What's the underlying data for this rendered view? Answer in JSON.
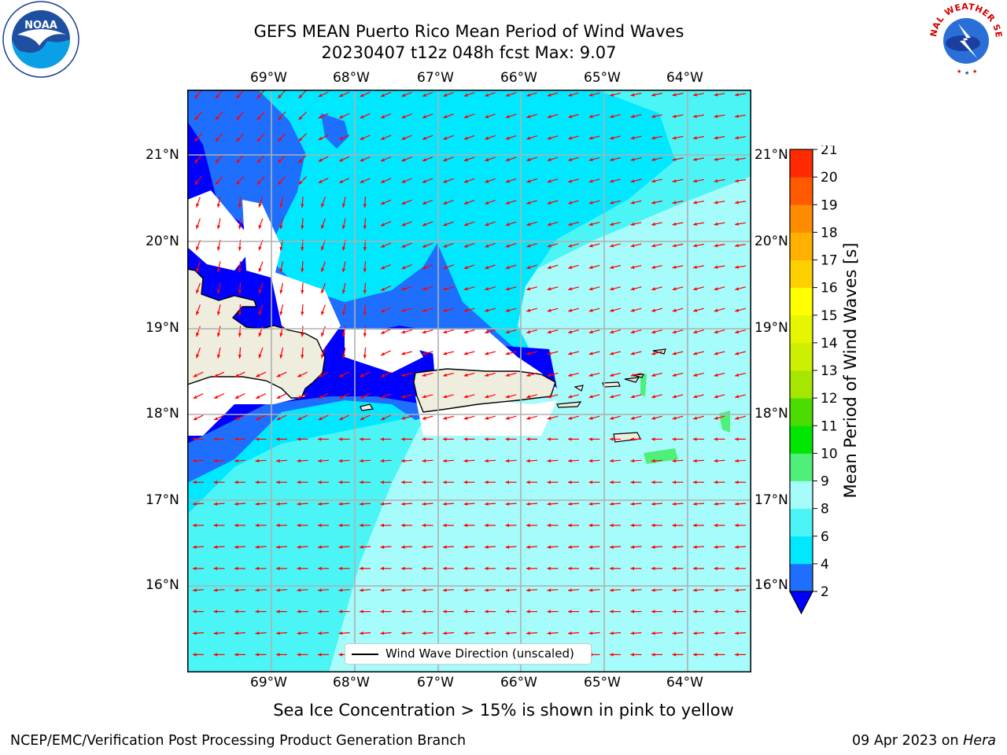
{
  "title_line1": "GEFS MEAN Puerto Rico Mean Period of Wind Waves",
  "title_line2": "20230407 t12z 048h fcst   Max: 9.07",
  "longitude_labels": [
    "69°W",
    "68°W",
    "67°W",
    "66°W",
    "65°W",
    "64°W"
  ],
  "latitude_labels": [
    "21°N",
    "20°N",
    "19°N",
    "18°N",
    "17°N",
    "16°N"
  ],
  "legend": {
    "label": "Wind Wave Direction (unscaled)"
  },
  "colorbar": {
    "label": "Mean Period of Wind Waves [s]",
    "ticks": [
      "2",
      "4",
      "6",
      "8",
      "9",
      "10",
      "11",
      "12",
      "13",
      "14",
      "15",
      "16",
      "17",
      "18",
      "19",
      "20",
      "21"
    ],
    "colors": [
      "#1f6fff",
      "#00e8ff",
      "#4cf5f5",
      "#a6fbfb",
      "#4ef07a",
      "#00e600",
      "#4cdc00",
      "#a6e600",
      "#ccf000",
      "#e6f500",
      "#ffff00",
      "#ffd000",
      "#ffb000",
      "#ff8c00",
      "#ff5a00",
      "#ff2a00",
      "#ff0000"
    ],
    "under_color": "#0000ff"
  },
  "caption": "Sea Ice Concentration > 15% is shown in pink to yellow",
  "footer": {
    "left": "NCEP/EMC/Verification Post Processing Product Generation Branch",
    "date": "09 Apr 2023 on ",
    "machine": "Hera"
  },
  "logos": {
    "left": "NOAA",
    "right": "NATIONAL WEATHER SERVICE"
  },
  "map": {
    "projection": "PlateCarree",
    "lon_range": [
      -70.0,
      -63.3
    ],
    "lat_range": [
      15.0,
      21.8
    ],
    "field_max": 9.07,
    "land_color": "#efedde",
    "arrow_color": "#ff0000"
  }
}
